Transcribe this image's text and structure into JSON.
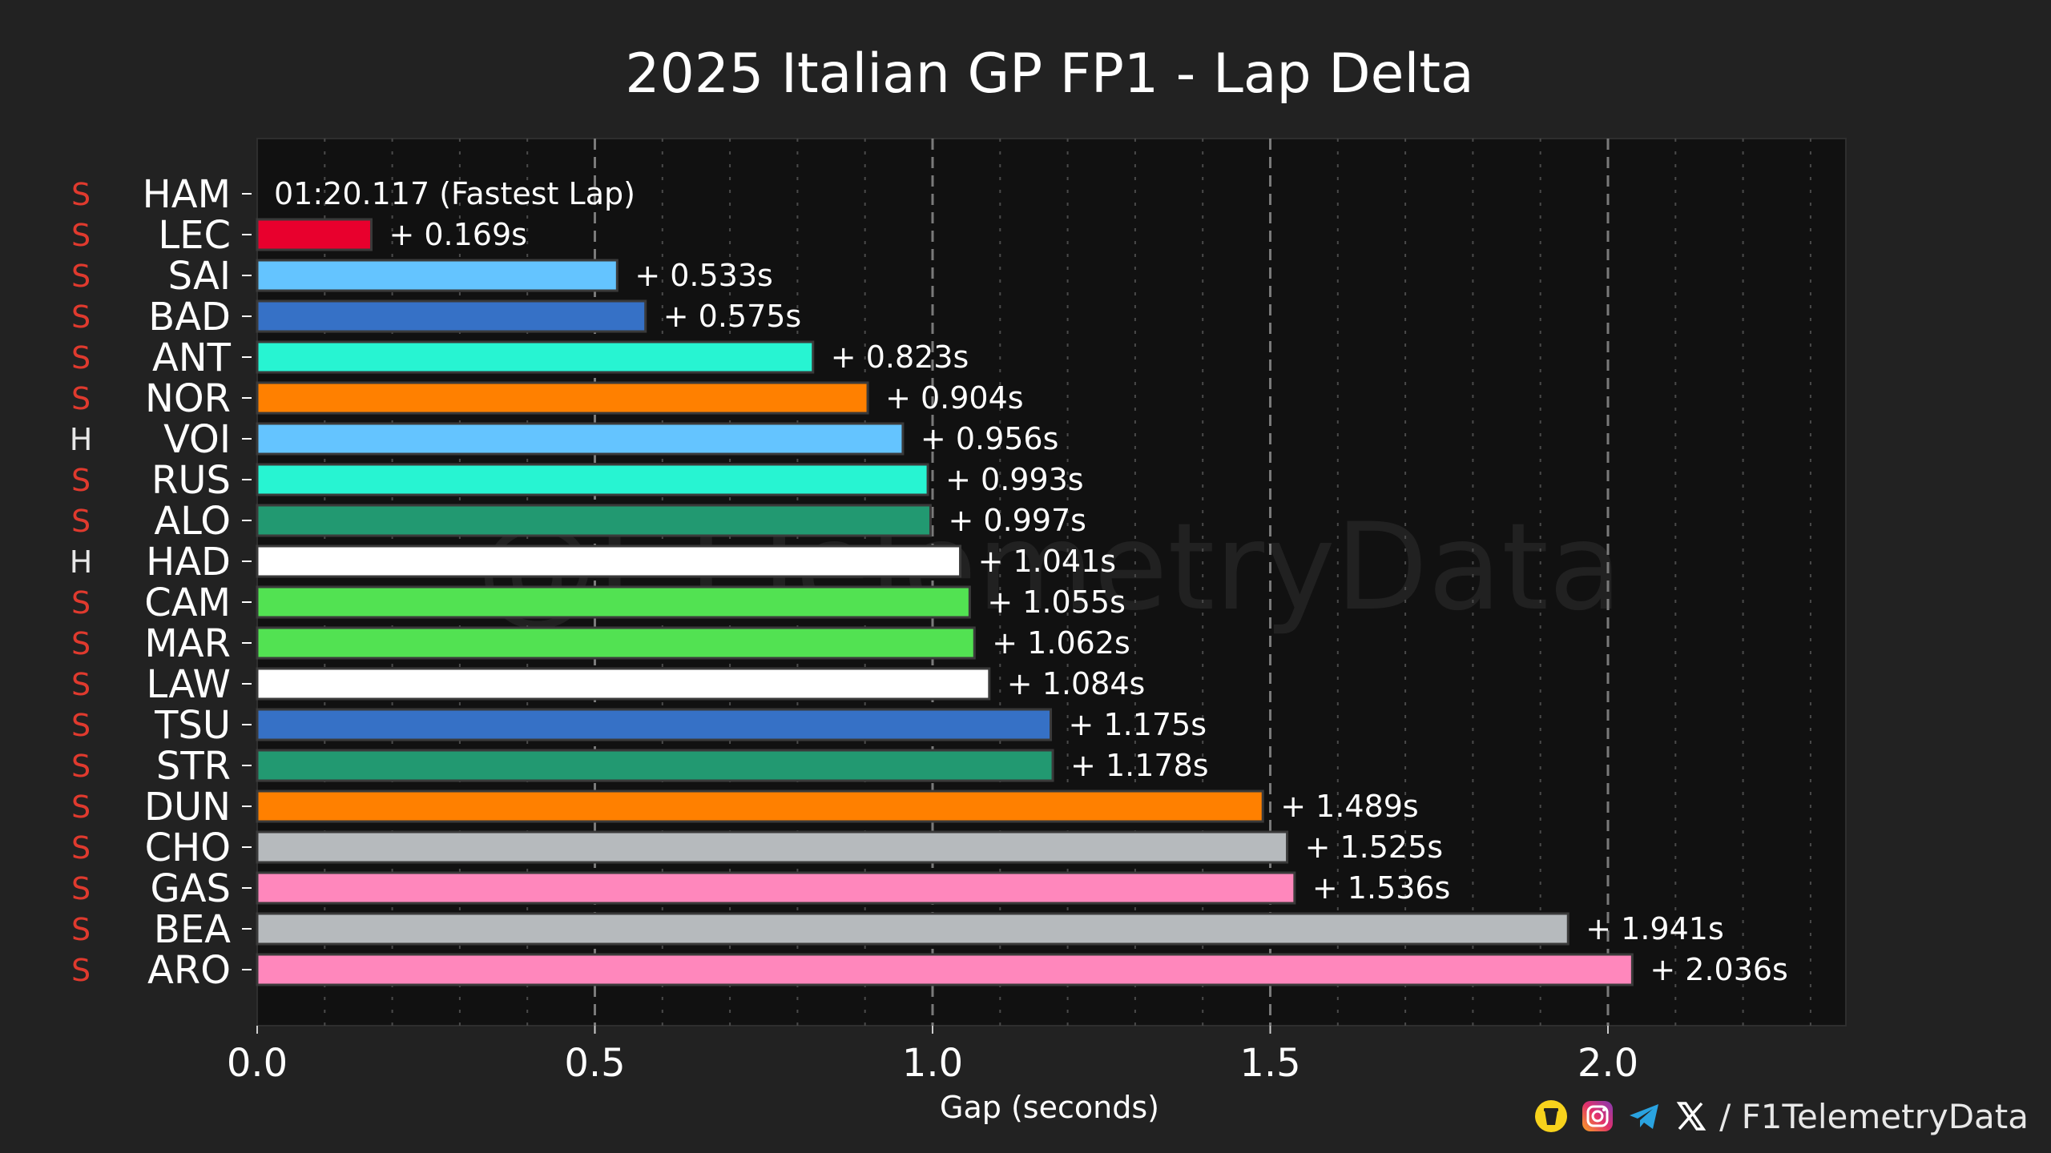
{
  "chart_data": {
    "type": "bar",
    "orientation": "horizontal",
    "title": "2025 Italian GP FP1 - Lap Delta",
    "xlabel": "Gap (seconds)",
    "ylabel": "",
    "xlim": [
      0,
      2.35
    ],
    "xticks": [
      "0.0",
      "0.5",
      "1.0",
      "1.5",
      "2.0"
    ],
    "grid": true,
    "watermark": "@F1TelemetryData",
    "fastest_label": "01:20.117 (Fastest Lap)",
    "drivers": [
      {
        "code": "HAM",
        "tyre": "S",
        "gap": 0.0,
        "label": "01:20.117 (Fastest Lap)",
        "color": "#e8002d"
      },
      {
        "code": "LEC",
        "tyre": "S",
        "gap": 0.169,
        "label": "+ 0.169s",
        "color": "#e8002d"
      },
      {
        "code": "SAI",
        "tyre": "S",
        "gap": 0.533,
        "label": "+ 0.533s",
        "color": "#64c4ff"
      },
      {
        "code": "BAD",
        "tyre": "S",
        "gap": 0.575,
        "label": "+ 0.575s",
        "color": "#3671c6"
      },
      {
        "code": "ANT",
        "tyre": "S",
        "gap": 0.823,
        "label": "+ 0.823s",
        "color": "#27f4d2"
      },
      {
        "code": "NOR",
        "tyre": "S",
        "gap": 0.904,
        "label": "+ 0.904s",
        "color": "#ff8000"
      },
      {
        "code": "VOI",
        "tyre": "H",
        "gap": 0.956,
        "label": "+ 0.956s",
        "color": "#64c4ff"
      },
      {
        "code": "RUS",
        "tyre": "S",
        "gap": 0.993,
        "label": "+ 0.993s",
        "color": "#27f4d2"
      },
      {
        "code": "ALO",
        "tyre": "S",
        "gap": 0.997,
        "label": "+ 0.997s",
        "color": "#229971"
      },
      {
        "code": "HAD",
        "tyre": "H",
        "gap": 1.041,
        "label": "+ 1.041s",
        "color": "#ffffff"
      },
      {
        "code": "CAM",
        "tyre": "S",
        "gap": 1.055,
        "label": "+ 1.055s",
        "color": "#52e252"
      },
      {
        "code": "MAR",
        "tyre": "S",
        "gap": 1.062,
        "label": "+ 1.062s",
        "color": "#52e252"
      },
      {
        "code": "LAW",
        "tyre": "S",
        "gap": 1.084,
        "label": "+ 1.084s",
        "color": "#ffffff"
      },
      {
        "code": "TSU",
        "tyre": "S",
        "gap": 1.175,
        "label": "+ 1.175s",
        "color": "#3671c6"
      },
      {
        "code": "STR",
        "tyre": "S",
        "gap": 1.178,
        "label": "+ 1.178s",
        "color": "#229971"
      },
      {
        "code": "DUN",
        "tyre": "S",
        "gap": 1.489,
        "label": "+ 1.489s",
        "color": "#ff8000"
      },
      {
        "code": "CHO",
        "tyre": "S",
        "gap": 1.525,
        "label": "+ 1.525s",
        "color": "#b6babd"
      },
      {
        "code": "GAS",
        "tyre": "S",
        "gap": 1.536,
        "label": "+ 1.536s",
        "color": "#ff87bc"
      },
      {
        "code": "BEA",
        "tyre": "S",
        "gap": 1.941,
        "label": "+ 1.941s",
        "color": "#b6babd"
      },
      {
        "code": "ARO",
        "tyre": "S",
        "gap": 2.036,
        "label": "+ 2.036s",
        "color": "#ff87bc"
      }
    ],
    "tyre_colors": {
      "S": "#e03a2e",
      "H": "#e8e8e8"
    }
  },
  "footer": {
    "handle": "/ F1TelemetryData",
    "icons": [
      "cup-icon",
      "instagram-icon",
      "telegram-icon",
      "x-icon"
    ]
  },
  "colors": {
    "background": "#222222",
    "plot_background": "#111111",
    "grid": "#6b6b6b",
    "text": "#ffffff"
  }
}
